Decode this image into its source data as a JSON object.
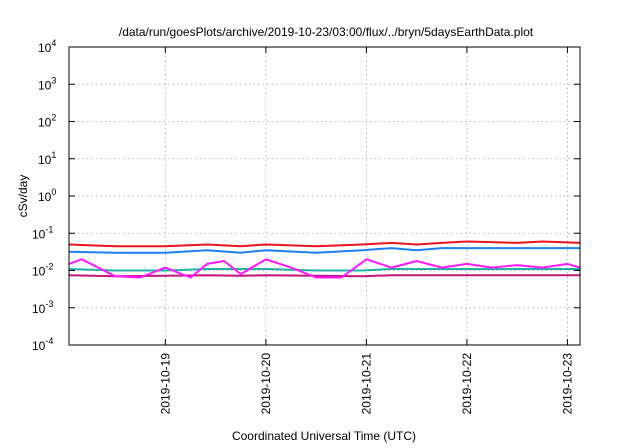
{
  "chart_data": {
    "type": "line",
    "title": "/data/run/goesPlots/archive/2019-10-23/03:00/flux/../bryn/5daysEarthData.plot",
    "xlabel": "Coordinated Universal Time (UTC)",
    "ylabel": "cSv/day",
    "yscale": "log",
    "ylim": [
      0.0001,
      10000
    ],
    "y_ticks": [
      {
        "base": "10",
        "exp": "-4"
      },
      {
        "base": "10",
        "exp": "-3"
      },
      {
        "base": "10",
        "exp": "-2"
      },
      {
        "base": "10",
        "exp": "-1"
      },
      {
        "base": "10",
        "exp": "0"
      },
      {
        "base": "10",
        "exp": "1"
      },
      {
        "base": "10",
        "exp": "2"
      },
      {
        "base": "10",
        "exp": "3"
      },
      {
        "base": "10",
        "exp": "4"
      }
    ],
    "xlim": [
      "2019-10-18T01:00",
      "2019-10-23T03:00"
    ],
    "x_ticks": [
      "2019-10-19",
      "2019-10-20",
      "2019-10-21",
      "2019-10-22",
      "2019-10-23"
    ],
    "grid": true,
    "legend": "none",
    "series": [
      {
        "color": "#e8141e",
        "x": [
          "2019-10-18T01:00",
          "2019-10-18T12:00",
          "2019-10-19T00:00",
          "2019-10-19T10:00",
          "2019-10-19T18:00",
          "2019-10-20T00:00",
          "2019-10-20T12:00",
          "2019-10-20T23:00",
          "2019-10-21T06:00",
          "2019-10-21T12:00",
          "2019-10-21T18:00",
          "2019-10-22T00:00",
          "2019-10-22T12:00",
          "2019-10-22T18:00",
          "2019-10-23T03:00"
        ],
        "values": [
          0.05,
          0.045,
          0.045,
          0.05,
          0.045,
          0.05,
          0.045,
          0.05,
          0.055,
          0.05,
          0.055,
          0.06,
          0.055,
          0.06,
          0.055
        ]
      },
      {
        "color": "#1e7ff0",
        "x": [
          "2019-10-18T01:00",
          "2019-10-18T12:00",
          "2019-10-19T00:00",
          "2019-10-19T10:00",
          "2019-10-19T18:00",
          "2019-10-20T00:00",
          "2019-10-20T12:00",
          "2019-10-20T23:00",
          "2019-10-21T06:00",
          "2019-10-21T12:00",
          "2019-10-21T18:00",
          "2019-10-22T00:00",
          "2019-10-22T12:00",
          "2019-10-22T18:00",
          "2019-10-23T03:00"
        ],
        "values": [
          0.032,
          0.03,
          0.03,
          0.035,
          0.03,
          0.035,
          0.03,
          0.035,
          0.04,
          0.035,
          0.04,
          0.04,
          0.04,
          0.04,
          0.04
        ]
      },
      {
        "color": "#22b2a8",
        "x": [
          "2019-10-18T01:00",
          "2019-10-18T12:00",
          "2019-10-19T00:00",
          "2019-10-19T10:00",
          "2019-10-19T18:00",
          "2019-10-20T00:00",
          "2019-10-20T12:00",
          "2019-10-20T23:00",
          "2019-10-21T06:00",
          "2019-10-21T12:00",
          "2019-10-21T18:00",
          "2019-10-22T00:00",
          "2019-10-22T12:00",
          "2019-10-22T18:00",
          "2019-10-23T03:00"
        ],
        "values": [
          0.011,
          0.01,
          0.01,
          0.011,
          0.011,
          0.011,
          0.01,
          0.01,
          0.011,
          0.011,
          0.011,
          0.011,
          0.011,
          0.011,
          0.011
        ]
      },
      {
        "color": "#c4127e",
        "x": [
          "2019-10-18T01:00",
          "2019-10-18T12:00",
          "2019-10-19T00:00",
          "2019-10-19T10:00",
          "2019-10-19T18:00",
          "2019-10-20T00:00",
          "2019-10-20T12:00",
          "2019-10-20T23:00",
          "2019-10-21T06:00",
          "2019-10-21T12:00",
          "2019-10-21T18:00",
          "2019-10-22T00:00",
          "2019-10-22T12:00",
          "2019-10-22T18:00",
          "2019-10-23T03:00"
        ],
        "values": [
          0.0075,
          0.007,
          0.0072,
          0.0075,
          0.0072,
          0.0075,
          0.0072,
          0.007,
          0.0075,
          0.0075,
          0.0075,
          0.0075,
          0.0075,
          0.0075,
          0.0075
        ]
      },
      {
        "color": "#ff19ff",
        "x": [
          "2019-10-18T01:00",
          "2019-10-18T04:00",
          "2019-10-18T08:00",
          "2019-10-18T12:00",
          "2019-10-18T18:00",
          "2019-10-19T00:00",
          "2019-10-19T06:00",
          "2019-10-19T10:00",
          "2019-10-19T14:00",
          "2019-10-19T18:00",
          "2019-10-20T00:00",
          "2019-10-20T06:00",
          "2019-10-20T12:00",
          "2019-10-20T18:00",
          "2019-10-21T00:00",
          "2019-10-21T06:00",
          "2019-10-21T12:00",
          "2019-10-21T18:00",
          "2019-10-22T00:00",
          "2019-10-22T06:00",
          "2019-10-22T12:00",
          "2019-10-22T18:00",
          "2019-10-23T00:00",
          "2019-10-23T03:00"
        ],
        "values": [
          0.015,
          0.02,
          0.012,
          0.007,
          0.0065,
          0.012,
          0.0065,
          0.015,
          0.018,
          0.008,
          0.02,
          0.012,
          0.0065,
          0.0065,
          0.02,
          0.012,
          0.018,
          0.012,
          0.015,
          0.012,
          0.014,
          0.012,
          0.015,
          0.012
        ]
      }
    ]
  }
}
